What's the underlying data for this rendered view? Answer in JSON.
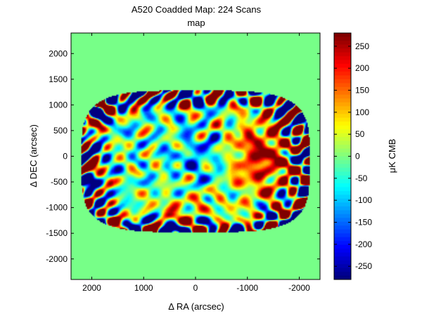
{
  "chart_data": {
    "type": "heatmap",
    "title": "A520 Coadded Map: 224 Scans",
    "subtitle": "map",
    "xlabel": "Δ RA (arcsec)",
    "ylabel": "Δ DEC (arcsec)",
    "xlim": [
      2400,
      -2400
    ],
    "ylim": [
      -2400,
      2400
    ],
    "x_reversed": true,
    "xticks": [
      2000,
      1000,
      0,
      -1000,
      -2000
    ],
    "yticks": [
      2000,
      1500,
      1000,
      500,
      0,
      -500,
      -1000,
      -1500,
      -2000
    ],
    "colorbar": {
      "label": "μK CMB",
      "range": [
        -280,
        280
      ],
      "ticks": [
        250,
        200,
        150,
        100,
        50,
        0,
        -50,
        -100,
        -150,
        -200,
        -250
      ],
      "colormap": "jet"
    },
    "features": {
      "background_value": 0,
      "scanned_region": {
        "center": [
          0,
          -100
        ],
        "half_width": 2200,
        "half_height": 1380
      },
      "hot_lobe": {
        "center": [
          -1300,
          0
        ],
        "value": 250
      },
      "cold_core": {
        "center": [
          -100,
          0
        ],
        "value": -150
      }
    }
  }
}
